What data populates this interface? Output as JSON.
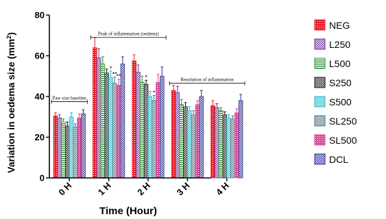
{
  "chart_data": {
    "type": "bar",
    "xlabel": "Time (Hour)",
    "ylabel": "Variation in oedema size (mm²)",
    "ylabel_main": "Variation in oedema size (mm",
    "ylabel_sup": "2",
    "ylabel_close": ")",
    "ylim": [
      0,
      80
    ],
    "yticks": [
      "0",
      "20",
      "40",
      "60",
      "80"
    ],
    "categories": [
      "0 H",
      "1 H",
      "2 H",
      "3 H",
      "4 H"
    ],
    "series": [
      {
        "name": "NEG",
        "color": "#e8202a",
        "pattern": "grid",
        "values": [
          30.5,
          64,
          57.5,
          43,
          35.5
        ],
        "errors": [
          1.5,
          5,
          3,
          2.5,
          2.5
        ]
      },
      {
        "name": "L250",
        "color": "#6a2c91",
        "pattern": "checker",
        "values": [
          29.5,
          59,
          52,
          42,
          34.5
        ],
        "errors": [
          1.5,
          4.5,
          3.5,
          3,
          2
        ]
      },
      {
        "name": "L500",
        "color": "#2e8b2e",
        "pattern": "hlines",
        "values": [
          27.5,
          56,
          47,
          36,
          33
        ],
        "errors": [
          1.5,
          3.5,
          3,
          2.5,
          1.5
        ]
      },
      {
        "name": "S250",
        "color": "#111111",
        "pattern": "diagdown",
        "values": [
          25.5,
          51.5,
          46,
          35,
          31
        ],
        "errors": [
          2,
          2,
          2,
          2,
          1.5
        ]
      },
      {
        "name": "S500",
        "color": "#22b8c8",
        "pattern": "diagup",
        "values": [
          30,
          49.5,
          40,
          33,
          29.5
        ],
        "errors": [
          2,
          3,
          2.5,
          2,
          1.5
        ]
      },
      {
        "name": "SL250",
        "color": "#4a6f7a",
        "pattern": "diagdown",
        "values": [
          25,
          46.5,
          38,
          31,
          29
        ],
        "errors": [
          1.5,
          3,
          2.5,
          2,
          1.5
        ]
      },
      {
        "name": "SL500",
        "color": "#d64b9a",
        "pattern": "grid",
        "values": [
          29.5,
          45.5,
          47,
          36,
          32
        ],
        "errors": [
          2,
          3,
          4,
          2,
          2
        ]
      },
      {
        "name": "DCL",
        "color": "#2b2b8c",
        "pattern": "diagup",
        "values": [
          31.5,
          56,
          50,
          40,
          38
        ],
        "errors": [
          2,
          3.5,
          4.5,
          3,
          3
        ]
      }
    ],
    "significance": [
      {
        "category": 1,
        "series": 4,
        "label": "*"
      },
      {
        "category": 1,
        "series": 5,
        "label": "**"
      },
      {
        "category": 1,
        "series": 6,
        "label": "**"
      },
      {
        "category": 2,
        "series": 3,
        "label": "*"
      },
      {
        "category": 2,
        "series": 5,
        "label": "*"
      }
    ],
    "annotations": [
      {
        "text": "Paw size baseline",
        "from_category": 0,
        "to_category": 0,
        "y": 37.5
      },
      {
        "text": "Peak of inflammation (oedema)",
        "from_category": 1,
        "to_category": 2,
        "y": 69
      },
      {
        "text": "Resolution of inflammation",
        "from_category": 3,
        "to_category": 4,
        "y": 46.5
      }
    ],
    "legend_position": "right",
    "grid": false
  }
}
